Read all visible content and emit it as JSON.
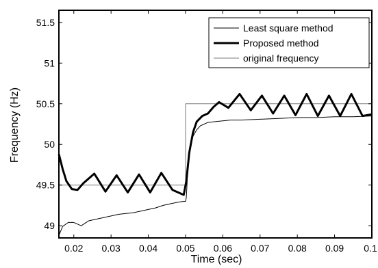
{
  "chart_data": {
    "type": "line",
    "xlabel": "Time (sec)",
    "ylabel": "Frequency (Hz)",
    "xlim": [
      0.016,
      0.1
    ],
    "ylim": [
      48.85,
      51.65
    ],
    "x_ticks": [
      0.02,
      0.03,
      0.04,
      0.05,
      0.06,
      0.07,
      0.08,
      0.09,
      0.1
    ],
    "x_tick_labels": [
      "0.02",
      "0.03",
      "0.04",
      "0.05",
      "0.06",
      "0.07",
      "0.08",
      "0.09",
      "0.1"
    ],
    "y_ticks": [
      49,
      49.5,
      50,
      50.5,
      51,
      51.5
    ],
    "y_tick_labels": [
      "49",
      "49.5",
      "50",
      "50.5",
      "51",
      "51.5"
    ],
    "grid": false,
    "legend_position": "top-right",
    "series": [
      {
        "name": "Least square method",
        "style": "thin",
        "x": [
          0.016,
          0.017,
          0.0185,
          0.02,
          0.022,
          0.024,
          0.026,
          0.028,
          0.03,
          0.032,
          0.034,
          0.036,
          0.038,
          0.04,
          0.042,
          0.044,
          0.046,
          0.048,
          0.0495,
          0.05,
          0.0502,
          0.0505,
          0.051,
          0.0515,
          0.052,
          0.053,
          0.054,
          0.055,
          0.056,
          0.058,
          0.06,
          0.062,
          0.065,
          0.07,
          0.075,
          0.08,
          0.085,
          0.09,
          0.095,
          0.1
        ],
        "y": [
          48.88,
          48.99,
          49.04,
          49.04,
          49.0,
          49.06,
          49.08,
          49.1,
          49.12,
          49.14,
          49.15,
          49.16,
          49.18,
          49.2,
          49.22,
          49.25,
          49.27,
          49.29,
          49.3,
          49.3,
          49.35,
          49.6,
          49.85,
          50.0,
          50.1,
          50.18,
          50.23,
          50.25,
          50.27,
          50.28,
          50.29,
          50.3,
          50.3,
          50.31,
          50.32,
          50.33,
          50.33,
          50.34,
          50.34,
          50.35
        ]
      },
      {
        "name": "Proposed method",
        "style": "thick",
        "x": [
          0.016,
          0.017,
          0.018,
          0.0195,
          0.021,
          0.0225,
          0.0255,
          0.0285,
          0.0315,
          0.0345,
          0.0375,
          0.0405,
          0.0435,
          0.0465,
          0.0495,
          0.0502,
          0.051,
          0.052,
          0.053,
          0.0545,
          0.056,
          0.0575,
          0.059,
          0.0615,
          0.0645,
          0.0675,
          0.0705,
          0.0735,
          0.0765,
          0.0795,
          0.0825,
          0.0855,
          0.0885,
          0.0915,
          0.0945,
          0.0975,
          0.1
        ],
        "y": [
          49.88,
          49.7,
          49.55,
          49.45,
          49.44,
          49.52,
          49.64,
          49.42,
          49.62,
          49.41,
          49.63,
          49.41,
          49.65,
          49.44,
          49.38,
          49.55,
          49.9,
          50.15,
          50.28,
          50.35,
          50.38,
          50.46,
          50.52,
          50.45,
          50.62,
          50.42,
          50.6,
          50.38,
          50.6,
          50.36,
          50.62,
          50.35,
          50.6,
          50.35,
          50.62,
          50.35,
          50.37
        ]
      },
      {
        "name": "original frequency",
        "style": "gray",
        "x": [
          0.016,
          0.05,
          0.05,
          0.1
        ],
        "y": [
          49.5,
          49.5,
          50.5,
          50.5
        ]
      }
    ]
  }
}
